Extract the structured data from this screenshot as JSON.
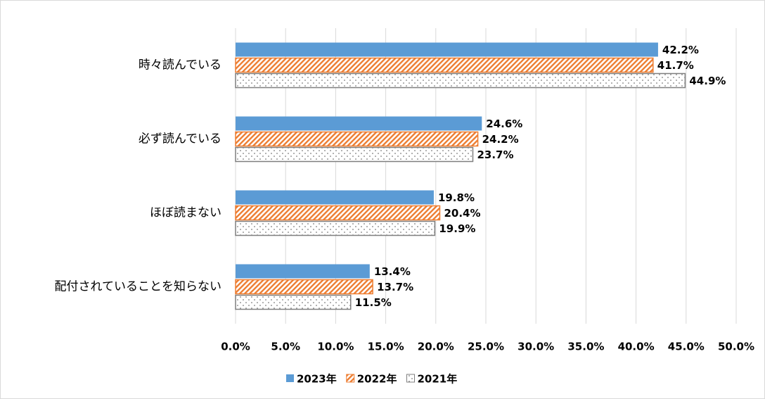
{
  "chart_data": {
    "type": "hbar",
    "categories": [
      "時々読んでいる",
      "必ず読んでいる",
      "ほぼ読まない",
      "配付されていることを知らない"
    ],
    "series": [
      {
        "name": "2023年",
        "color": "#5b9bd5",
        "pattern": "solid",
        "values": [
          42.2,
          24.6,
          19.8,
          13.4
        ],
        "value_labels": [
          "42.2%",
          "24.6%",
          "19.8%",
          "13.4%"
        ]
      },
      {
        "name": "2022年",
        "color": "#ed7d31",
        "pattern": "hatch",
        "values": [
          41.7,
          24.2,
          20.4,
          13.7
        ],
        "value_labels": [
          "41.7%",
          "24.2%",
          "20.4%",
          "13.7%"
        ]
      },
      {
        "name": "2021年",
        "color": "#7f7f7f",
        "pattern": "dots",
        "values": [
          44.9,
          23.7,
          19.9,
          11.5
        ],
        "value_labels": [
          "44.9%",
          "23.7%",
          "19.9%",
          "11.5%"
        ]
      }
    ],
    "xlim": [
      0,
      50
    ],
    "xticks": [
      {
        "value": 0,
        "label": "0.0%"
      },
      {
        "value": 5,
        "label": "5.0%"
      },
      {
        "value": 10,
        "label": "10.0%"
      },
      {
        "value": 15,
        "label": "15.0%"
      },
      {
        "value": 20,
        "label": "20.0%"
      },
      {
        "value": 25,
        "label": "25.0%"
      },
      {
        "value": 30,
        "label": "30.0%"
      },
      {
        "value": 35,
        "label": "35.0%"
      },
      {
        "value": 40,
        "label": "40.0%"
      },
      {
        "value": 45,
        "label": "45.0%"
      },
      {
        "value": 50,
        "label": "50.0%"
      }
    ],
    "grid": true,
    "legend": "bottom"
  }
}
